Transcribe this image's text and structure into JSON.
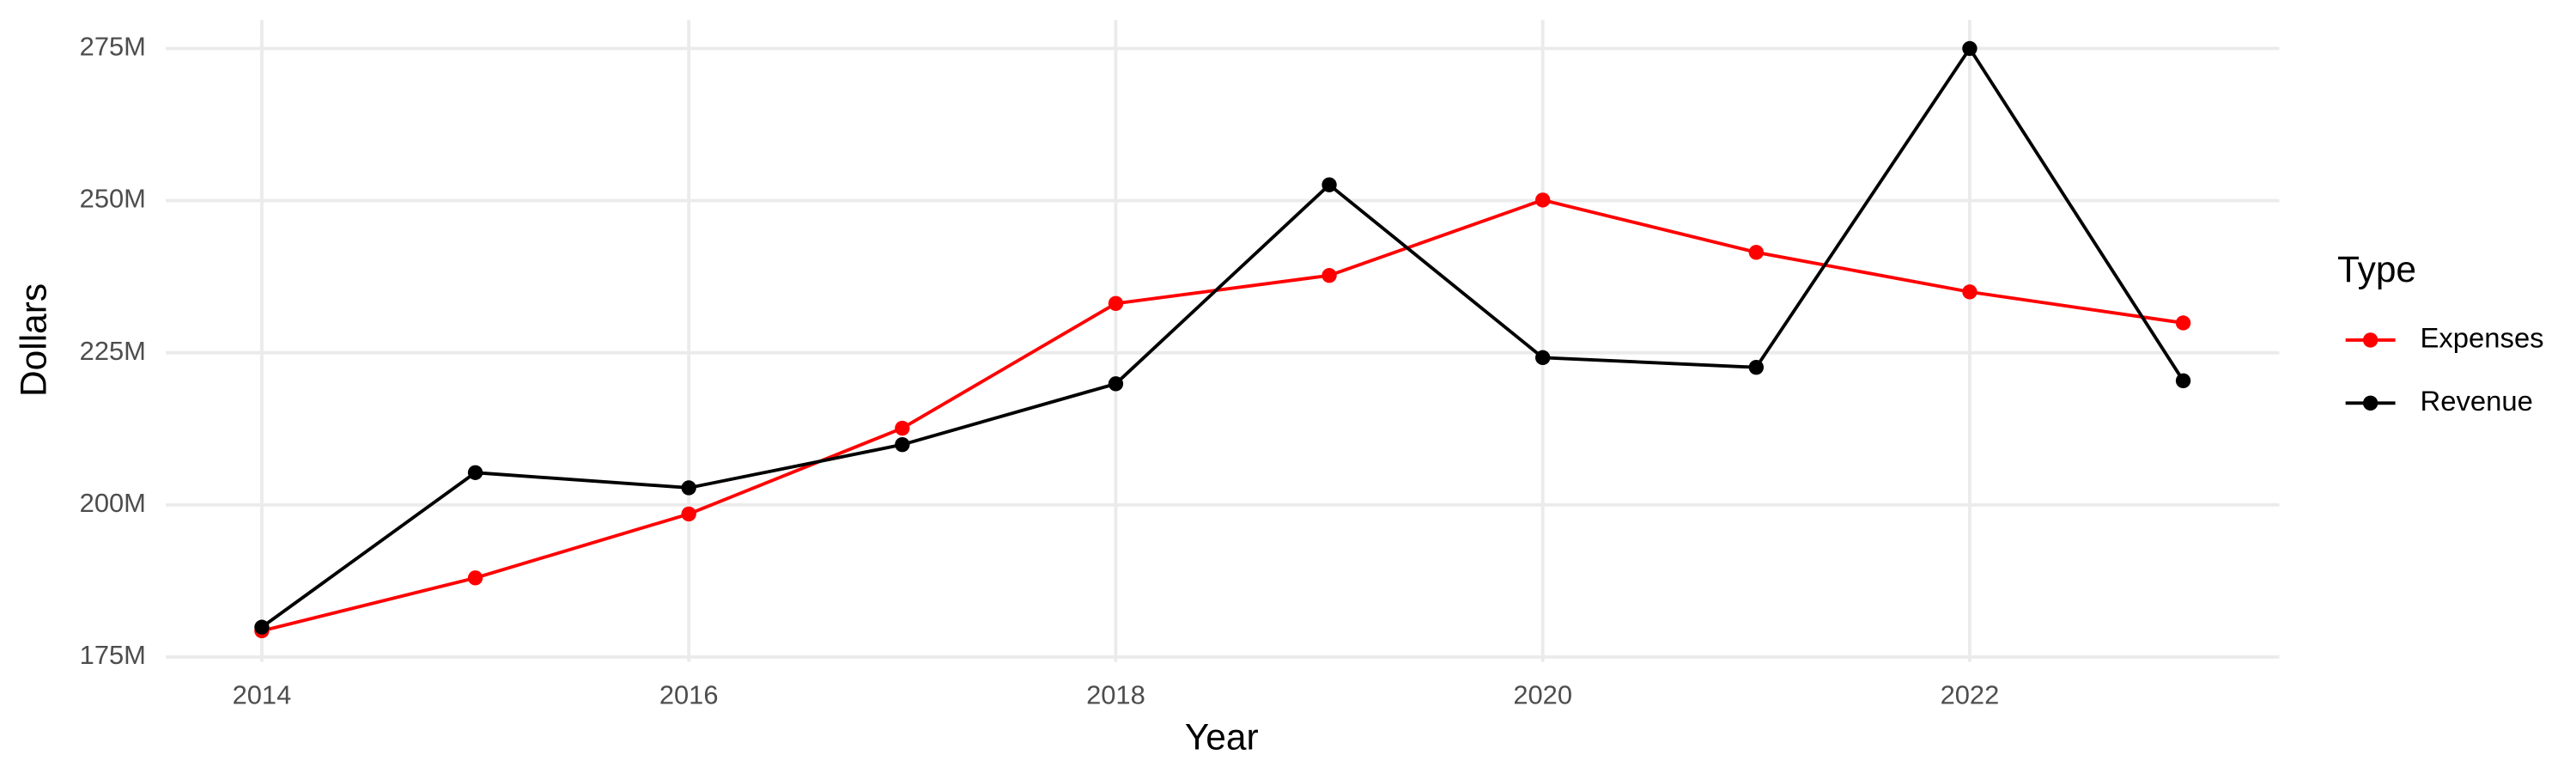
{
  "chart_data": {
    "type": "line",
    "x_label": "Year",
    "y_label": "Dollars",
    "legend_title": "Type",
    "legend_position": "right",
    "grid": true,
    "x": [
      2014,
      2015,
      2016,
      2017,
      2018,
      2019,
      2020,
      2021,
      2022,
      2023
    ],
    "xlim": [
      2013.55,
      2023.45
    ],
    "xticks": [
      2014,
      2016,
      2018,
      2020,
      2022
    ],
    "ylim": [
      174200000,
      279700000
    ],
    "yticks": [
      {
        "value": 175000000,
        "label": "175M"
      },
      {
        "value": 200000000,
        "label": "200M"
      },
      {
        "value": 225000000,
        "label": "225M"
      },
      {
        "value": 250000000,
        "label": "250M"
      },
      {
        "value": 275000000,
        "label": "275M"
      }
    ],
    "series": [
      {
        "name": "Expenses",
        "color": "#ff0000",
        "values": [
          179300000,
          188000000,
          198500000,
          212600000,
          233100000,
          237700000,
          250100000,
          241500000,
          235000000,
          229900000
        ]
      },
      {
        "name": "Revenue",
        "color": "#000000",
        "values": [
          179900000,
          205300000,
          202800000,
          209900000,
          219900000,
          252600000,
          224200000,
          222600000,
          275000000,
          220400000
        ]
      }
    ]
  }
}
